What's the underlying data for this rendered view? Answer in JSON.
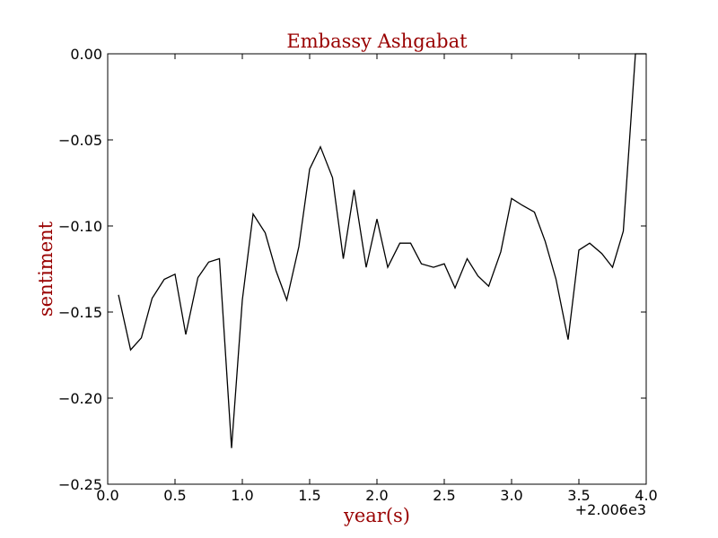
{
  "chart_data": {
    "type": "line",
    "title": "Embassy Ashgabat",
    "xlabel": "year(s)",
    "ylabel": "sentiment",
    "x_offset_label": "+2.006e3",
    "xlim": [
      0.0,
      4.0
    ],
    "ylim": [
      -0.25,
      0.0
    ],
    "xticks": [
      0.0,
      0.5,
      1.0,
      1.5,
      2.0,
      2.5,
      3.0,
      3.5,
      4.0
    ],
    "xtick_labels": [
      "0.0",
      "0.5",
      "1.0",
      "1.5",
      "2.0",
      "2.5",
      "3.0",
      "3.5",
      "4.0"
    ],
    "yticks": [
      0.0,
      -0.05,
      -0.1,
      -0.15,
      -0.2,
      -0.25
    ],
    "ytick_labels": [
      "0.00",
      "−0.05",
      "−0.10",
      "−0.15",
      "−0.20",
      "−0.25"
    ],
    "grid": false,
    "series": [
      {
        "color": "#000000",
        "points": [
          [
            0.08,
            -0.14
          ],
          [
            0.17,
            -0.172
          ],
          [
            0.25,
            -0.165
          ],
          [
            0.33,
            -0.142
          ],
          [
            0.42,
            -0.131
          ],
          [
            0.5,
            -0.128
          ],
          [
            0.58,
            -0.163
          ],
          [
            0.67,
            -0.13
          ],
          [
            0.75,
            -0.121
          ],
          [
            0.83,
            -0.119
          ],
          [
            0.92,
            -0.229
          ],
          [
            1.0,
            -0.143
          ],
          [
            1.08,
            -0.093
          ],
          [
            1.17,
            -0.104
          ],
          [
            1.25,
            -0.126
          ],
          [
            1.33,
            -0.143
          ],
          [
            1.42,
            -0.112
          ],
          [
            1.5,
            -0.067
          ],
          [
            1.58,
            -0.054
          ],
          [
            1.67,
            -0.072
          ],
          [
            1.75,
            -0.119
          ],
          [
            1.83,
            -0.079
          ],
          [
            1.92,
            -0.124
          ],
          [
            2.0,
            -0.096
          ],
          [
            2.08,
            -0.124
          ],
          [
            2.17,
            -0.11
          ],
          [
            2.25,
            -0.11
          ],
          [
            2.33,
            -0.122
          ],
          [
            2.42,
            -0.124
          ],
          [
            2.5,
            -0.122
          ],
          [
            2.58,
            -0.136
          ],
          [
            2.67,
            -0.119
          ],
          [
            2.75,
            -0.129
          ],
          [
            2.83,
            -0.135
          ],
          [
            2.92,
            -0.115
          ],
          [
            3.0,
            -0.084
          ],
          [
            3.08,
            -0.088
          ],
          [
            3.17,
            -0.092
          ],
          [
            3.25,
            -0.109
          ],
          [
            3.33,
            -0.131
          ],
          [
            3.42,
            -0.166
          ],
          [
            3.5,
            -0.114
          ],
          [
            3.58,
            -0.11
          ],
          [
            3.67,
            -0.116
          ],
          [
            3.75,
            -0.124
          ],
          [
            3.83,
            -0.103
          ],
          [
            3.92,
            0.0
          ],
          [
            4.0,
            0.0
          ]
        ]
      }
    ],
    "colors": {
      "title": "#990000",
      "axis_label": "#990000",
      "line": "#000000",
      "axes": "#000000"
    }
  }
}
